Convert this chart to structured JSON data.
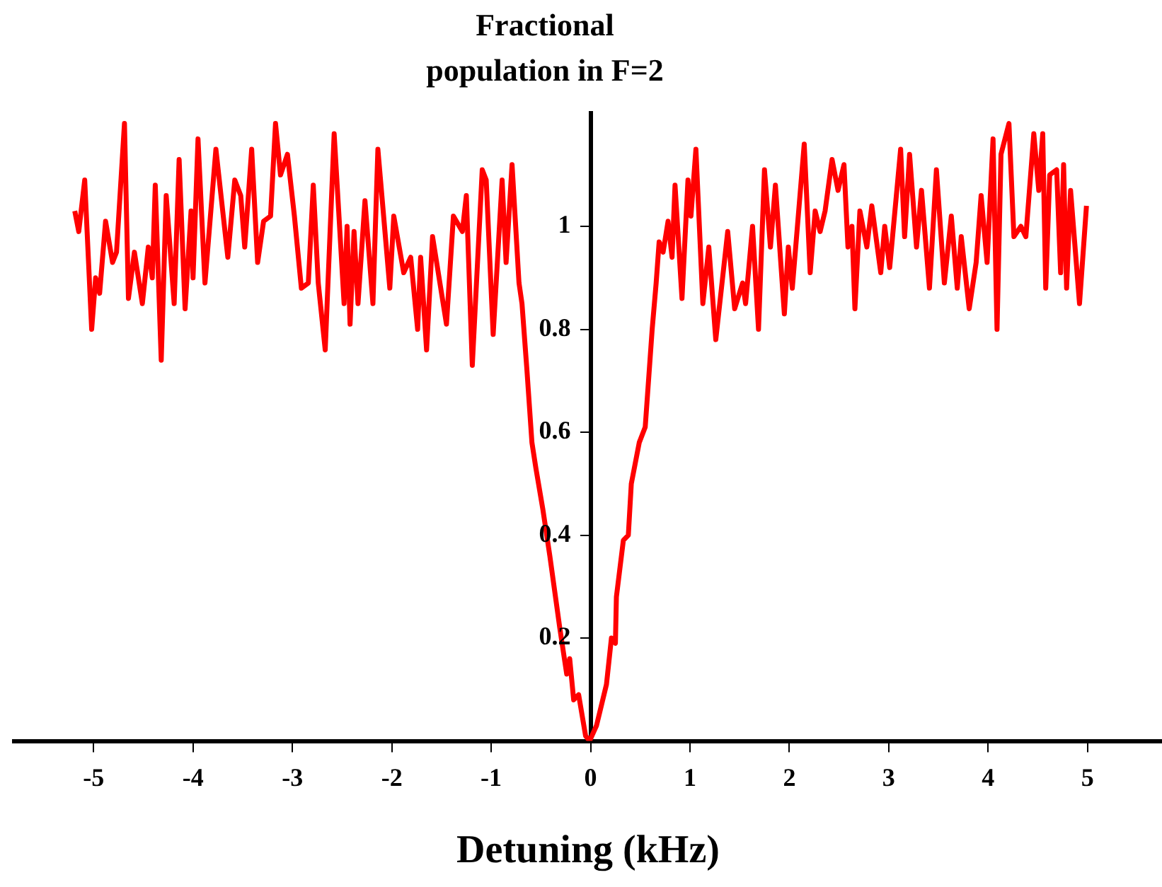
{
  "chart_data": {
    "type": "line",
    "title": "Fractional population in F=2",
    "xlabel": "Detuning (kHz)",
    "xlim": [
      -5.8,
      5.75
    ],
    "xticks": [
      -5,
      -4,
      -3,
      -2,
      -1,
      0,
      1,
      2,
      3,
      4,
      5
    ],
    "ylim": [
      0,
      1.22
    ],
    "yticks": [
      0.2,
      0.4,
      0.6,
      0.8,
      1
    ],
    "grid": false,
    "legend": false,
    "marker": "none",
    "line_style": "solid",
    "series": [
      {
        "color": "#ff0000",
        "x": [
          -5.19,
          -5.15,
          -5.09,
          -5.02,
          -4.98,
          -4.94,
          -4.88,
          -4.81,
          -4.77,
          -4.69,
          -4.65,
          -4.59,
          -4.51,
          -4.45,
          -4.41,
          -4.38,
          -4.32,
          -4.27,
          -4.19,
          -4.14,
          -4.08,
          -4.02,
          -4.0,
          -3.95,
          -3.88,
          -3.77,
          -3.65,
          -3.58,
          -3.52,
          -3.48,
          -3.41,
          -3.35,
          -3.29,
          -3.22,
          -3.17,
          -3.12,
          -3.05,
          -2.98,
          -2.91,
          -2.84,
          -2.79,
          -2.74,
          -2.67,
          -2.58,
          -2.48,
          -2.45,
          -2.42,
          -2.38,
          -2.34,
          -2.27,
          -2.19,
          -2.14,
          -2.02,
          -1.98,
          -1.88,
          -1.81,
          -1.74,
          -1.71,
          -1.65,
          -1.59,
          -1.45,
          -1.38,
          -1.29,
          -1.25,
          -1.19,
          -1.09,
          -1.05,
          -0.98,
          -0.89,
          -0.85,
          -0.79,
          -0.72,
          -0.69,
          -0.64,
          -0.59,
          -0.55,
          -0.48,
          -0.41,
          -0.31,
          -0.24,
          -0.21,
          -0.17,
          -0.12,
          -0.05,
          -0.01,
          0.06,
          0.16,
          0.21,
          0.25,
          0.26,
          0.33,
          0.38,
          0.41,
          0.49,
          0.55,
          0.62,
          0.66,
          0.69,
          0.73,
          0.78,
          0.82,
          0.85,
          0.92,
          0.98,
          1.01,
          1.06,
          1.13,
          1.19,
          1.26,
          1.38,
          1.45,
          1.53,
          1.56,
          1.63,
          1.69,
          1.75,
          1.81,
          1.86,
          1.95,
          1.99,
          2.03,
          2.15,
          2.21,
          2.26,
          2.31,
          2.36,
          2.43,
          2.49,
          2.55,
          2.59,
          2.63,
          2.66,
          2.71,
          2.78,
          2.83,
          2.92,
          2.96,
          3.01,
          3.12,
          3.16,
          3.21,
          3.28,
          3.33,
          3.41,
          3.48,
          3.56,
          3.63,
          3.69,
          3.73,
          3.81,
          3.88,
          3.93,
          3.99,
          4.05,
          4.09,
          4.13,
          4.21,
          4.26,
          4.33,
          4.38,
          4.46,
          4.51,
          4.55,
          4.58,
          4.62,
          4.69,
          4.73,
          4.76,
          4.79,
          4.83,
          4.92,
          4.99
        ],
        "values": [
          1.03,
          0.99,
          1.09,
          0.8,
          0.9,
          0.87,
          1.01,
          0.93,
          0.95,
          1.2,
          0.86,
          0.95,
          0.85,
          0.96,
          0.9,
          1.08,
          0.74,
          1.06,
          0.85,
          1.13,
          0.84,
          1.03,
          0.9,
          1.17,
          0.89,
          1.15,
          0.94,
          1.09,
          1.06,
          0.96,
          1.15,
          0.93,
          1.01,
          1.02,
          1.2,
          1.1,
          1.14,
          1.02,
          0.88,
          0.89,
          1.08,
          0.89,
          0.76,
          1.18,
          0.85,
          1.0,
          0.81,
          0.99,
          0.85,
          1.05,
          0.85,
          1.15,
          0.88,
          1.02,
          0.91,
          0.94,
          0.8,
          0.94,
          0.76,
          0.98,
          0.81,
          1.02,
          0.99,
          1.06,
          0.73,
          1.11,
          1.09,
          0.79,
          1.09,
          0.93,
          1.12,
          0.89,
          0.85,
          0.72,
          0.58,
          0.53,
          0.45,
          0.36,
          0.22,
          0.13,
          0.16,
          0.08,
          0.09,
          0.01,
          0,
          0.03,
          0.11,
          0.2,
          0.19,
          0.28,
          0.39,
          0.4,
          0.5,
          0.58,
          0.61,
          0.8,
          0.89,
          0.97,
          0.95,
          1.01,
          0.94,
          1.08,
          0.86,
          1.09,
          1.02,
          1.15,
          0.85,
          0.96,
          0.78,
          0.99,
          0.84,
          0.89,
          0.85,
          1.0,
          0.8,
          1.11,
          0.96,
          1.08,
          0.83,
          0.96,
          0.88,
          1.16,
          0.91,
          1.03,
          0.99,
          1.03,
          1.13,
          1.07,
          1.12,
          0.96,
          1.0,
          0.84,
          1.03,
          0.96,
          1.04,
          0.91,
          1.0,
          0.92,
          1.15,
          0.98,
          1.14,
          0.96,
          1.07,
          0.88,
          1.11,
          0.89,
          1.02,
          0.88,
          0.98,
          0.84,
          0.93,
          1.06,
          0.93,
          1.17,
          0.8,
          1.14,
          1.2,
          0.98,
          1.0,
          0.98,
          1.18,
          1.07,
          1.18,
          0.88,
          1.1,
          1.11,
          0.91,
          1.12,
          0.88,
          1.07,
          0.85,
          1.04
        ]
      }
    ]
  }
}
